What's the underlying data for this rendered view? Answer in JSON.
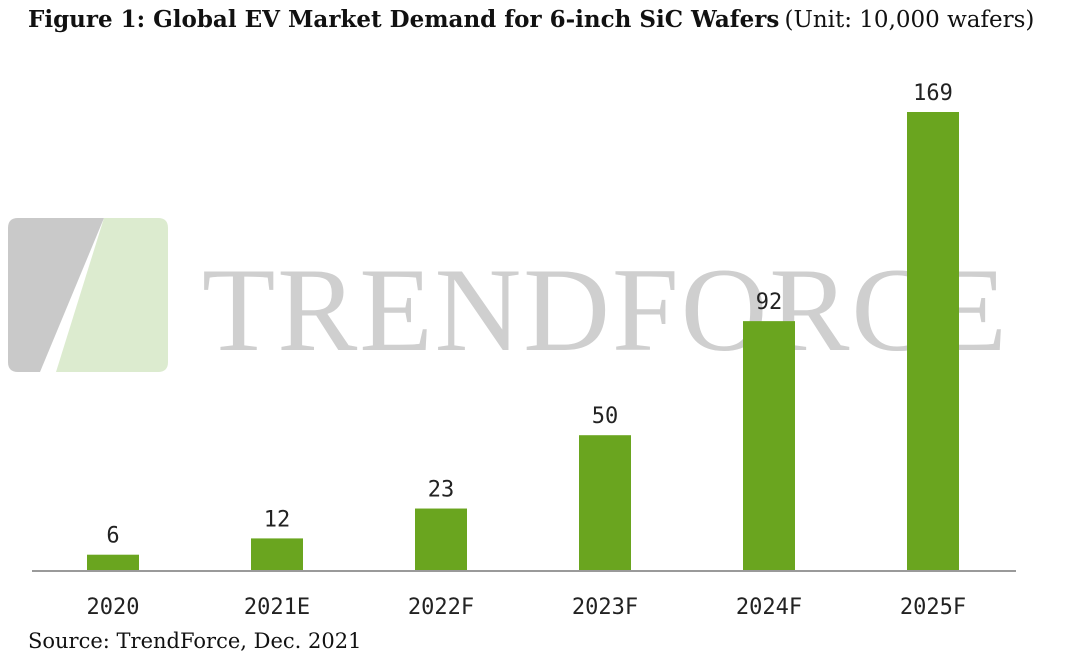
{
  "title": "Figure 1: Global EV Market Demand for 6-inch SiC Wafers",
  "unit": "(Unit: 10,000 wafers)",
  "source": "Source: TrendForce, Dec. 2021",
  "watermark": "TRENDFORCE",
  "colors": {
    "bar": "#6aa51f",
    "axis": "#9a9a9a",
    "watermark_text": "#cfcfcf",
    "logo_gray": "#c9c9c9",
    "logo_green": "#dcebcf"
  },
  "chart_data": {
    "type": "bar",
    "categories": [
      "2020",
      "2021E",
      "2022F",
      "2023F",
      "2024F",
      "2025F"
    ],
    "values": [
      6,
      12,
      23,
      50,
      92,
      169
    ],
    "title": "Figure 1: Global EV Market Demand for 6-inch SiC Wafers",
    "subtitle": "(Unit: 10,000 wafers)",
    "xlabel": "",
    "ylabel": "",
    "ylim": [
      0,
      169
    ],
    "grid": false,
    "legend": "none"
  }
}
